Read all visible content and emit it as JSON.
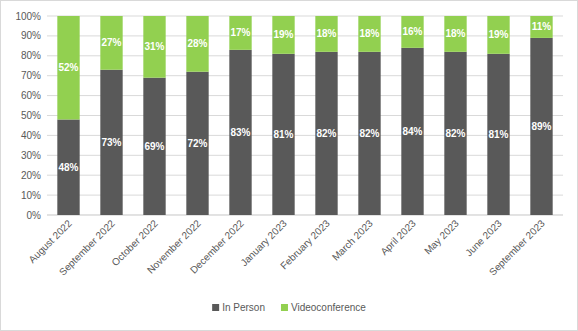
{
  "chart_data": {
    "type": "bar",
    "stacked": true,
    "data_labels": true,
    "grid": true,
    "legend": "bottom",
    "categories": [
      "August 2022",
      "September 2022",
      "October 2022",
      "November 2022",
      "December 2022",
      "January 2023",
      "February 2023",
      "March 2023",
      "April 2023",
      "May 2023",
      "June 2023",
      "September 2023"
    ],
    "series": [
      {
        "name": "In Person",
        "color": "#595959",
        "values": [
          48,
          73,
          69,
          72,
          83,
          81,
          82,
          82,
          84,
          82,
          81,
          89
        ],
        "value_labels": [
          "48%",
          "73%",
          "69%",
          "72%",
          "83%",
          "81%",
          "82%",
          "82%",
          "84%",
          "82%",
          "81%",
          "89%"
        ]
      },
      {
        "name": "Videoconference",
        "color": "#92d050",
        "values": [
          52,
          27,
          31,
          28,
          17,
          19,
          18,
          18,
          16,
          18,
          19,
          11
        ],
        "value_labels": [
          "52%",
          "27%",
          "31%",
          "28%",
          "17%",
          "19%",
          "18%",
          "18%",
          "16%",
          "18%",
          "19%",
          "11%"
        ]
      }
    ],
    "ylim": [
      0,
      100
    ],
    "yticks": [
      {
        "value": 0,
        "label": "0%"
      },
      {
        "value": 10,
        "label": "10%"
      },
      {
        "value": 20,
        "label": "20%"
      },
      {
        "value": 30,
        "label": "30%"
      },
      {
        "value": 40,
        "label": "40%"
      },
      {
        "value": 50,
        "label": "50%"
      },
      {
        "value": 60,
        "label": "60%"
      },
      {
        "value": 70,
        "label": "70%"
      },
      {
        "value": 80,
        "label": "80%"
      },
      {
        "value": 90,
        "label": "90%"
      },
      {
        "value": 100,
        "label": "100%"
      }
    ]
  }
}
